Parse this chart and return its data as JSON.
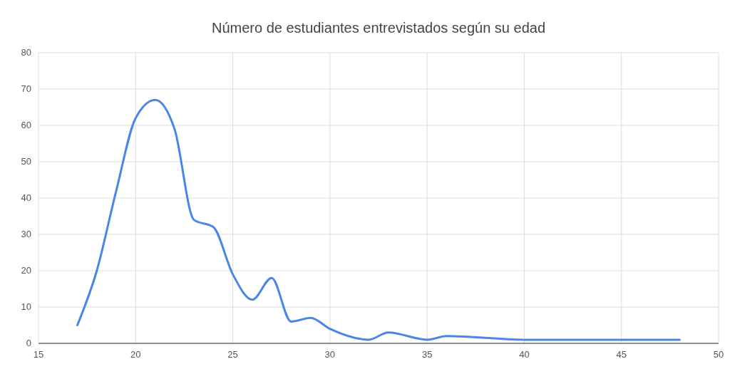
{
  "chart_data": {
    "type": "line",
    "title": "Número de estudiantes entrevistados según su edad",
    "x": [
      17,
      18,
      19,
      20,
      21,
      22,
      23,
      24,
      25,
      26,
      27,
      28,
      29,
      30,
      32,
      33,
      35,
      36,
      40,
      48
    ],
    "series": [
      {
        "color": "#4a86e8",
        "values": [
          5,
          20,
          42,
          62,
          67,
          59,
          34,
          32,
          19,
          12,
          18,
          6,
          7,
          4,
          1,
          3,
          1,
          2,
          1,
          1
        ]
      }
    ],
    "xlim": [
      15,
      50
    ],
    "xticks": [
      15,
      20,
      25,
      30,
      35,
      40,
      45,
      50
    ],
    "ylim": [
      0,
      80
    ],
    "yticks": [
      0,
      10,
      20,
      30,
      40,
      50,
      60,
      70,
      80
    ],
    "grid": true,
    "marker": "none",
    "line_style": "solid"
  }
}
